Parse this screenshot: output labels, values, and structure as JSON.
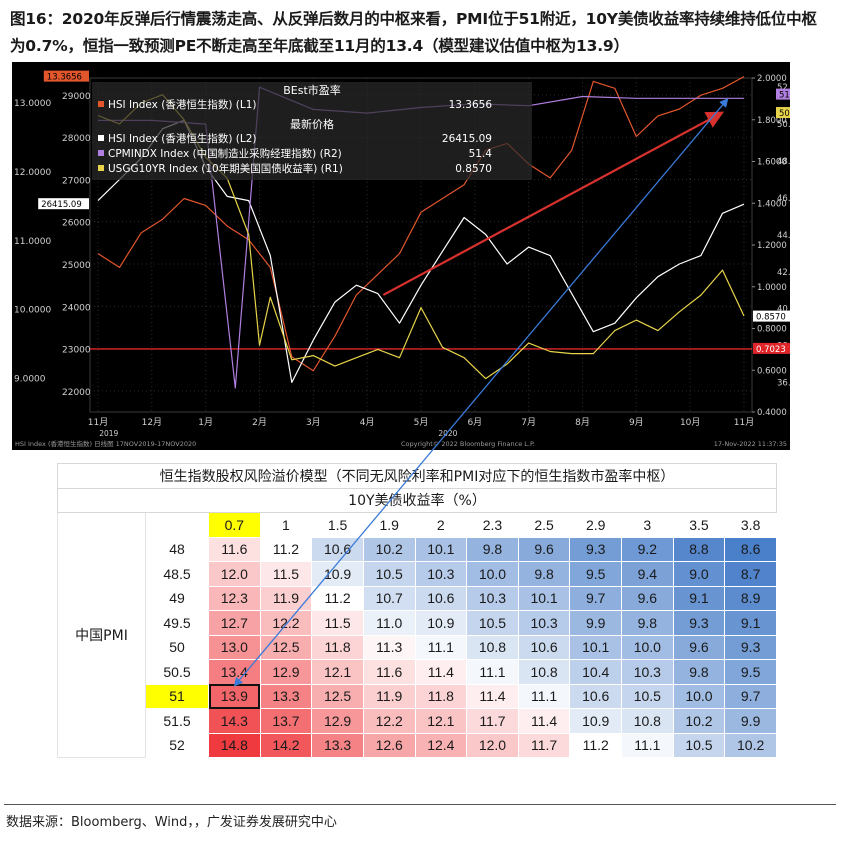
{
  "figure": {
    "title": "图16：2020年反弹后行情震荡走高、从反弹后数月的中枢来看，PMI位于51附近，10Y美债收益率持续维持低位中枢为0.7%，恒指一致预测PE不断走高至年底截至11月的13.4（模型建议估值中枢为13.9）",
    "source": "数据来源：Bloomberg、Wind，，广发证券发展研究中心"
  },
  "chart_data": [
    {
      "type": "line",
      "subtitle": "BEst市盈率",
      "subtitle2": "最新价格",
      "footer_left": "HSI Index (香港恒生指数) 日线图 17NOV2019-17NOV2020",
      "footer_center": "Copyright© 2022 Bloomberg Finance L.P.",
      "footer_right": "17-Nov-2022 11:37:35",
      "x_ticks": [
        "11月",
        "12月",
        "1月",
        "2月",
        "3月",
        "4月",
        "5月",
        "6月",
        "7月",
        "8月",
        "9月",
        "10月",
        "11月"
      ],
      "x_years": [
        "2019",
        "2020"
      ],
      "left_axis_pe": {
        "ticks": [
          "13.0000",
          "12.0000",
          "11.0000",
          "10.0000",
          "9.0000"
        ],
        "ylim": [
          8.5,
          13.35
        ],
        "last_label": "13.3656"
      },
      "left_axis_price": {
        "ticks": [
          "29000",
          "28000",
          "27000",
          "26000",
          "25000",
          "24000",
          "23000",
          "22000"
        ],
        "ylim": [
          21500,
          29400
        ],
        "last_label": "26415.09"
      },
      "right_axis_yield": {
        "ticks": [
          "2.0000",
          "1.8000",
          "1.6000",
          "1.4000",
          "1.2000",
          "1.0000",
          "0.8000",
          "0.6000",
          "0.4000"
        ],
        "ylim": [
          0.4,
          2.0
        ],
        "last_label": "0.8570",
        "ref_label": "0.7023",
        "ref_value": 0.7023
      },
      "right_axis_pmi": {
        "ticks": [
          "52.0",
          "50.0",
          "48.0",
          "46.0",
          "44.0",
          "42.0",
          "40.0",
          "38.0",
          "36.0"
        ],
        "ylim": [
          34.4,
          52.5
        ],
        "last_labels": [
          "51.4",
          "50.9"
        ]
      },
      "legend": [
        {
          "label": "HSI Index (香港恒生指数) (L1)",
          "value": "13.3656",
          "color": "#e2562c"
        },
        {
          "label": "HSI Index (香港恒生指数) (L2)",
          "value": "26415.09",
          "color": "#ffffff"
        },
        {
          "label": "CPMINDX Index (中国制造业采购经理指数) (R2)",
          "value": "51.4",
          "color": "#b07fe0"
        },
        {
          "label": "USGG10YR Index (10年期美国国债收益率) (R1)",
          "value": "0.8570",
          "color": "#e8d44a"
        }
      ],
      "series": [
        {
          "name": "HSI Index (香港恒生指数) (L1)",
          "axis": "pe",
          "color": "#e2562c",
          "x": [
            0,
            0.4,
            0.8,
            1.2,
            1.6,
            2.0,
            2.4,
            2.8,
            3.2,
            3.6,
            4.0,
            4.4,
            4.8,
            5.2,
            5.6,
            6.0,
            6.4,
            6.8,
            7.2,
            7.6,
            8.0,
            8.4,
            8.8,
            9.2,
            9.6,
            10.0,
            10.4,
            10.8,
            11.2,
            11.6,
            12.0
          ],
          "values": [
            10.8,
            10.6,
            11.1,
            11.3,
            11.6,
            11.5,
            11.2,
            11.0,
            10.6,
            9.3,
            9.1,
            9.6,
            10.2,
            10.5,
            10.8,
            11.4,
            11.6,
            11.8,
            12.3,
            12.4,
            12.1,
            11.9,
            12.3,
            13.3,
            13.2,
            12.5,
            12.8,
            12.9,
            13.1,
            13.2,
            13.37
          ]
        },
        {
          "name": "HSI Index (香港恒生指数) (L2)",
          "axis": "price",
          "color": "#ffffff",
          "x": [
            0,
            0.4,
            0.8,
            1.2,
            1.6,
            2.0,
            2.4,
            2.8,
            3.2,
            3.6,
            4.0,
            4.4,
            4.8,
            5.2,
            5.6,
            6.0,
            6.4,
            6.8,
            7.2,
            7.6,
            8.0,
            8.4,
            8.8,
            9.2,
            9.6,
            10.0,
            10.4,
            10.8,
            11.2,
            11.6,
            12.0
          ],
          "values": [
            26500,
            27000,
            27500,
            28200,
            28400,
            27300,
            26600,
            26500,
            25200,
            22200,
            23200,
            24100,
            24500,
            24300,
            23600,
            24500,
            25300,
            26100,
            25700,
            25000,
            25400,
            25200,
            24300,
            23400,
            23600,
            24200,
            24700,
            25000,
            25200,
            26200,
            26415
          ]
        },
        {
          "name": "CPMINDX Index (中国制造业采购经理指数) (R2)",
          "axis": "pmi",
          "color": "#b07fe0",
          "x": [
            0,
            1,
            2,
            2.55,
            3.0,
            4,
            5,
            6,
            7,
            8,
            9,
            10,
            11,
            12
          ],
          "values": [
            50.2,
            50.2,
            50.0,
            35.7,
            52.0,
            50.8,
            50.6,
            50.9,
            51.1,
            51.0,
            51.5,
            51.4,
            51.4,
            51.4
          ]
        },
        {
          "name": "USGG10YR Index (10年期美国国债收益率) (R1)",
          "axis": "yield",
          "color": "#e8d44a",
          "x": [
            0,
            0.4,
            0.8,
            1.2,
            1.6,
            2.0,
            2.4,
            2.8,
            3.0,
            3.2,
            3.6,
            4.0,
            4.4,
            4.8,
            5.2,
            5.6,
            6.0,
            6.4,
            6.8,
            7.2,
            7.6,
            8.0,
            8.4,
            8.8,
            9.2,
            9.6,
            10.0,
            10.4,
            10.8,
            11.2,
            11.6,
            12.0
          ],
          "values": [
            1.82,
            1.78,
            1.88,
            1.92,
            1.8,
            1.62,
            1.52,
            1.25,
            0.72,
            0.95,
            0.65,
            0.67,
            0.62,
            0.66,
            0.7,
            0.66,
            0.9,
            0.71,
            0.66,
            0.56,
            0.63,
            0.73,
            0.69,
            0.68,
            0.68,
            0.79,
            0.84,
            0.79,
            0.88,
            0.96,
            1.08,
            0.86
          ]
        }
      ],
      "trend_arrow": {
        "from": [
          5.3,
          10.2
        ],
        "to": [
          11.6,
          12.85
        ]
      }
    },
    {
      "type": "table",
      "title": "恒生指数股权风险溢价模型（不同无风险利率和PMI对应下的恒生指数市盈率中枢）",
      "col_header": "10Y美债收益率（%）",
      "row_header": "中国PMI",
      "columns": [
        "0.7",
        "1",
        "1.5",
        "1.9",
        "2",
        "2.3",
        "2.5",
        "2.9",
        "3",
        "3.5",
        "3.8"
      ],
      "rows": [
        "48",
        "48.5",
        "49",
        "49.5",
        "50",
        "50.5",
        "51",
        "51.5",
        "52"
      ],
      "values": [
        [
          11.6,
          11.2,
          10.6,
          10.2,
          10.1,
          9.8,
          9.6,
          9.3,
          9.2,
          8.8,
          8.6
        ],
        [
          12.0,
          11.5,
          10.9,
          10.5,
          10.3,
          10.0,
          9.8,
          9.5,
          9.4,
          9.0,
          8.7
        ],
        [
          12.3,
          11.9,
          11.2,
          10.7,
          10.6,
          10.3,
          10.1,
          9.7,
          9.6,
          9.1,
          8.9
        ],
        [
          12.7,
          12.2,
          11.5,
          11.0,
          10.9,
          10.5,
          10.3,
          9.9,
          9.8,
          9.3,
          9.1
        ],
        [
          13.0,
          12.5,
          11.8,
          11.3,
          11.1,
          10.8,
          10.6,
          10.1,
          10.0,
          9.6,
          9.3
        ],
        [
          13.4,
          12.9,
          12.1,
          11.6,
          11.4,
          11.1,
          10.8,
          10.4,
          10.3,
          9.8,
          9.5
        ],
        [
          13.9,
          13.3,
          12.5,
          11.9,
          11.8,
          11.4,
          11.1,
          10.6,
          10.5,
          10.0,
          9.7
        ],
        [
          14.3,
          13.7,
          12.9,
          12.2,
          12.1,
          11.7,
          11.4,
          10.9,
          10.8,
          10.2,
          9.9
        ],
        [
          14.8,
          14.2,
          13.3,
          12.6,
          12.4,
          12.0,
          11.7,
          11.2,
          11.1,
          10.5,
          10.2
        ]
      ],
      "highlight": {
        "row": "51",
        "column": "0.7",
        "value": 13.9
      },
      "color_scale": {
        "low": "#4a7fc9",
        "mid": "#ffffff",
        "high": "#ef3b3f",
        "mid_value": 11.2
      }
    }
  ]
}
